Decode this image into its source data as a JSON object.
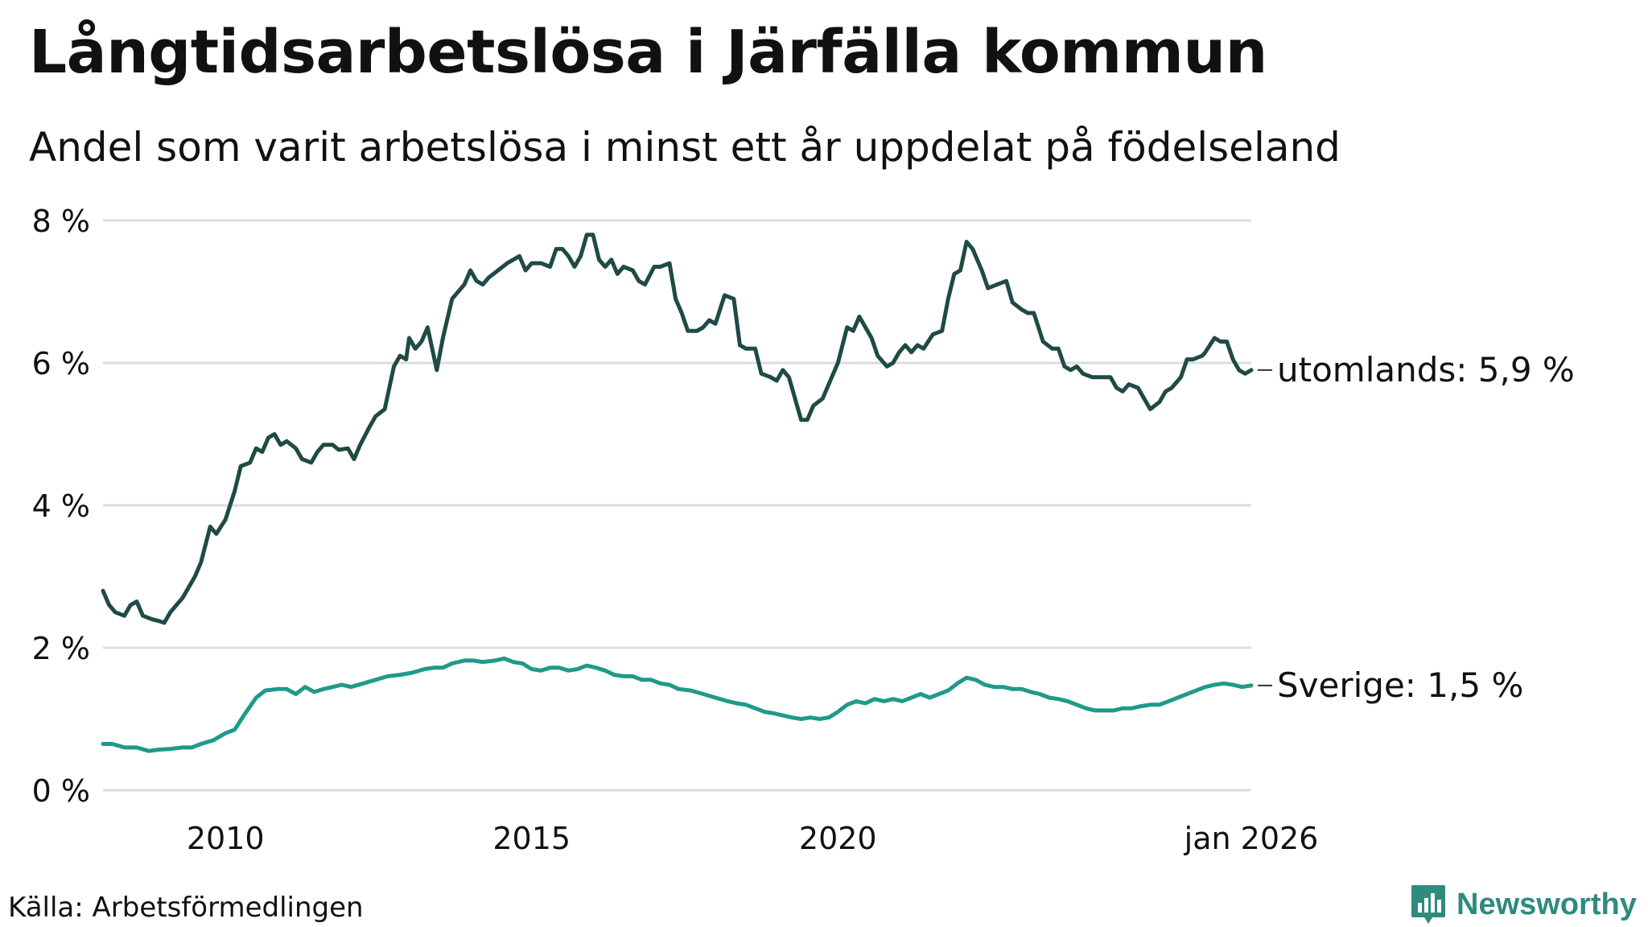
{
  "title": "Långtidsarbetslösa i Järfälla kommun",
  "subtitle": "Andel som varit arbetslösa i minst ett år uppdelat på födelseland",
  "source": "Källa: Arbetsförmedlingen",
  "brand": "Newsworthy",
  "colors": {
    "utomlands": "#1f4a45",
    "sverige": "#1e9a8b",
    "grid": "#dddddd",
    "brand": "#2e8b7e"
  },
  "chart_data": {
    "type": "line",
    "title": "Långtidsarbetslösa i Järfälla kommun",
    "subtitle": "Andel som varit arbetslösa i minst ett år uppdelat på födelseland",
    "xlabel": "",
    "ylabel": "",
    "xlim": [
      2008.0,
      2026.0
    ],
    "ylim": [
      0,
      8
    ],
    "grid": true,
    "y_ticks": [
      {
        "value": 0,
        "label": "0 %"
      },
      {
        "value": 2,
        "label": "2 %"
      },
      {
        "value": 4,
        "label": "4 %"
      },
      {
        "value": 6,
        "label": "6 %"
      },
      {
        "value": 8,
        "label": "8 %"
      }
    ],
    "x_ticks": [
      {
        "value": 2010,
        "label": "2010"
      },
      {
        "value": 2015,
        "label": "2015"
      },
      {
        "value": 2020,
        "label": "2020"
      },
      {
        "value": 2026,
        "label": "jan 2026"
      }
    ],
    "series": [
      {
        "name": "utomlands",
        "end_label": "utomlands: 5,9 %",
        "points": [
          [
            2008.0,
            2.8
          ],
          [
            2008.1,
            2.6
          ],
          [
            2008.2,
            2.5
          ],
          [
            2008.35,
            2.45
          ],
          [
            2008.45,
            2.6
          ],
          [
            2008.55,
            2.65
          ],
          [
            2008.65,
            2.45
          ],
          [
            2008.8,
            2.4
          ],
          [
            2008.9,
            2.38
          ],
          [
            2009.0,
            2.35
          ],
          [
            2009.1,
            2.5
          ],
          [
            2009.3,
            2.7
          ],
          [
            2009.5,
            3.0
          ],
          [
            2009.6,
            3.2
          ],
          [
            2009.75,
            3.7
          ],
          [
            2009.85,
            3.6
          ],
          [
            2010.0,
            3.8
          ],
          [
            2010.15,
            4.2
          ],
          [
            2010.25,
            4.55
          ],
          [
            2010.4,
            4.6
          ],
          [
            2010.5,
            4.8
          ],
          [
            2010.6,
            4.75
          ],
          [
            2010.7,
            4.95
          ],
          [
            2010.8,
            5.0
          ],
          [
            2010.9,
            4.85
          ],
          [
            2011.0,
            4.9
          ],
          [
            2011.15,
            4.8
          ],
          [
            2011.25,
            4.65
          ],
          [
            2011.4,
            4.6
          ],
          [
            2011.5,
            4.75
          ],
          [
            2011.6,
            4.85
          ],
          [
            2011.75,
            4.85
          ],
          [
            2011.85,
            4.78
          ],
          [
            2012.0,
            4.8
          ],
          [
            2012.1,
            4.65
          ],
          [
            2012.2,
            4.85
          ],
          [
            2012.35,
            5.1
          ],
          [
            2012.45,
            5.25
          ],
          [
            2012.6,
            5.35
          ],
          [
            2012.75,
            5.95
          ],
          [
            2012.85,
            6.1
          ],
          [
            2012.95,
            6.05
          ],
          [
            2013.0,
            6.35
          ],
          [
            2013.1,
            6.2
          ],
          [
            2013.2,
            6.3
          ],
          [
            2013.3,
            6.5
          ],
          [
            2013.45,
            5.9
          ],
          [
            2013.55,
            6.35
          ],
          [
            2013.7,
            6.9
          ],
          [
            2013.9,
            7.1
          ],
          [
            2014.0,
            7.3
          ],
          [
            2014.1,
            7.15
          ],
          [
            2014.2,
            7.1
          ],
          [
            2014.3,
            7.2
          ],
          [
            2014.45,
            7.3
          ],
          [
            2014.6,
            7.4
          ],
          [
            2014.8,
            7.5
          ],
          [
            2014.9,
            7.3
          ],
          [
            2015.0,
            7.4
          ],
          [
            2015.15,
            7.4
          ],
          [
            2015.3,
            7.35
          ],
          [
            2015.4,
            7.6
          ],
          [
            2015.5,
            7.6
          ],
          [
            2015.6,
            7.5
          ],
          [
            2015.7,
            7.35
          ],
          [
            2015.8,
            7.5
          ],
          [
            2015.9,
            7.8
          ],
          [
            2016.0,
            7.8
          ],
          [
            2016.1,
            7.45
          ],
          [
            2016.2,
            7.35
          ],
          [
            2016.3,
            7.45
          ],
          [
            2016.4,
            7.25
          ],
          [
            2016.5,
            7.35
          ],
          [
            2016.65,
            7.3
          ],
          [
            2016.75,
            7.15
          ],
          [
            2016.85,
            7.1
          ],
          [
            2017.0,
            7.35
          ],
          [
            2017.1,
            7.35
          ],
          [
            2017.25,
            7.4
          ],
          [
            2017.35,
            6.9
          ],
          [
            2017.45,
            6.7
          ],
          [
            2017.55,
            6.45
          ],
          [
            2017.7,
            6.45
          ],
          [
            2017.8,
            6.5
          ],
          [
            2017.9,
            6.6
          ],
          [
            2018.0,
            6.55
          ],
          [
            2018.15,
            6.95
          ],
          [
            2018.3,
            6.9
          ],
          [
            2018.4,
            6.25
          ],
          [
            2018.5,
            6.2
          ],
          [
            2018.65,
            6.2
          ],
          [
            2018.75,
            5.85
          ],
          [
            2018.9,
            5.8
          ],
          [
            2019.0,
            5.75
          ],
          [
            2019.1,
            5.9
          ],
          [
            2019.2,
            5.8
          ],
          [
            2019.3,
            5.5
          ],
          [
            2019.4,
            5.2
          ],
          [
            2019.5,
            5.2
          ],
          [
            2019.6,
            5.4
          ],
          [
            2019.75,
            5.5
          ],
          [
            2019.9,
            5.8
          ],
          [
            2020.0,
            6.0
          ],
          [
            2020.15,
            6.5
          ],
          [
            2020.25,
            6.45
          ],
          [
            2020.35,
            6.65
          ],
          [
            2020.45,
            6.5
          ],
          [
            2020.55,
            6.35
          ],
          [
            2020.65,
            6.1
          ],
          [
            2020.8,
            5.95
          ],
          [
            2020.9,
            6.0
          ],
          [
            2021.0,
            6.15
          ],
          [
            2021.1,
            6.25
          ],
          [
            2021.2,
            6.15
          ],
          [
            2021.3,
            6.25
          ],
          [
            2021.4,
            6.2
          ],
          [
            2021.55,
            6.4
          ],
          [
            2021.7,
            6.45
          ],
          [
            2021.8,
            6.9
          ],
          [
            2021.9,
            7.25
          ],
          [
            2022.0,
            7.3
          ],
          [
            2022.1,
            7.7
          ],
          [
            2022.2,
            7.6
          ],
          [
            2022.35,
            7.3
          ],
          [
            2022.45,
            7.05
          ],
          [
            2022.6,
            7.1
          ],
          [
            2022.75,
            7.15
          ],
          [
            2022.85,
            6.85
          ],
          [
            2023.0,
            6.75
          ],
          [
            2023.1,
            6.7
          ],
          [
            2023.2,
            6.7
          ],
          [
            2023.35,
            6.3
          ],
          [
            2023.5,
            6.2
          ],
          [
            2023.6,
            6.2
          ],
          [
            2023.7,
            5.95
          ],
          [
            2023.8,
            5.9
          ],
          [
            2023.9,
            5.95
          ],
          [
            2024.0,
            5.85
          ],
          [
            2024.15,
            5.8
          ],
          [
            2024.3,
            5.8
          ],
          [
            2024.45,
            5.8
          ],
          [
            2024.55,
            5.65
          ],
          [
            2024.65,
            5.6
          ],
          [
            2024.75,
            5.7
          ],
          [
            2024.9,
            5.65
          ],
          [
            2025.0,
            5.5
          ],
          [
            2025.1,
            5.35
          ],
          [
            2025.25,
            5.45
          ],
          [
            2025.35,
            5.6
          ],
          [
            2025.45,
            5.65
          ],
          [
            2025.6,
            5.8
          ],
          [
            2025.7,
            6.05
          ],
          [
            2025.8,
            6.05
          ],
          [
            2025.95,
            6.1
          ],
          [
            2026.0,
            6.15
          ],
          [
            2026.15,
            6.35
          ],
          [
            2026.25,
            6.3
          ],
          [
            2026.35,
            6.3
          ],
          [
            2026.45,
            6.05
          ],
          [
            2026.55,
            5.9
          ],
          [
            2026.65,
            5.85
          ],
          [
            2026.75,
            5.9
          ]
        ]
      },
      {
        "name": "Sverige",
        "end_label": "Sverige: 1,5 %",
        "points": [
          [
            2008.0,
            0.65
          ],
          [
            2008.15,
            0.65
          ],
          [
            2008.35,
            0.6
          ],
          [
            2008.55,
            0.6
          ],
          [
            2008.75,
            0.55
          ],
          [
            2008.9,
            0.57
          ],
          [
            2009.1,
            0.58
          ],
          [
            2009.3,
            0.6
          ],
          [
            2009.45,
            0.6
          ],
          [
            2009.6,
            0.65
          ],
          [
            2009.8,
            0.7
          ],
          [
            2010.0,
            0.8
          ],
          [
            2010.15,
            0.85
          ],
          [
            2010.3,
            1.05
          ],
          [
            2010.5,
            1.3
          ],
          [
            2010.65,
            1.4
          ],
          [
            2010.85,
            1.42
          ],
          [
            2011.0,
            1.42
          ],
          [
            2011.15,
            1.35
          ],
          [
            2011.3,
            1.45
          ],
          [
            2011.45,
            1.38
          ],
          [
            2011.6,
            1.42
          ],
          [
            2011.75,
            1.45
          ],
          [
            2011.9,
            1.48
          ],
          [
            2012.05,
            1.45
          ],
          [
            2012.25,
            1.5
          ],
          [
            2012.45,
            1.55
          ],
          [
            2012.65,
            1.6
          ],
          [
            2012.85,
            1.62
          ],
          [
            2013.05,
            1.65
          ],
          [
            2013.25,
            1.7
          ],
          [
            2013.4,
            1.72
          ],
          [
            2013.55,
            1.72
          ],
          [
            2013.7,
            1.78
          ],
          [
            2013.9,
            1.82
          ],
          [
            2014.05,
            1.82
          ],
          [
            2014.2,
            1.8
          ],
          [
            2014.4,
            1.82
          ],
          [
            2014.55,
            1.85
          ],
          [
            2014.7,
            1.8
          ],
          [
            2014.85,
            1.78
          ],
          [
            2015.0,
            1.7
          ],
          [
            2015.15,
            1.68
          ],
          [
            2015.3,
            1.72
          ],
          [
            2015.45,
            1.72
          ],
          [
            2015.6,
            1.68
          ],
          [
            2015.75,
            1.7
          ],
          [
            2015.9,
            1.75
          ],
          [
            2016.05,
            1.72
          ],
          [
            2016.2,
            1.68
          ],
          [
            2016.35,
            1.62
          ],
          [
            2016.5,
            1.6
          ],
          [
            2016.65,
            1.6
          ],
          [
            2016.8,
            1.55
          ],
          [
            2016.95,
            1.55
          ],
          [
            2017.1,
            1.5
          ],
          [
            2017.25,
            1.48
          ],
          [
            2017.4,
            1.42
          ],
          [
            2017.6,
            1.4
          ],
          [
            2017.8,
            1.35
          ],
          [
            2018.0,
            1.3
          ],
          [
            2018.2,
            1.25
          ],
          [
            2018.35,
            1.22
          ],
          [
            2018.5,
            1.2
          ],
          [
            2018.65,
            1.15
          ],
          [
            2018.8,
            1.1
          ],
          [
            2018.95,
            1.08
          ],
          [
            2019.1,
            1.05
          ],
          [
            2019.25,
            1.02
          ],
          [
            2019.4,
            1.0
          ],
          [
            2019.55,
            1.02
          ],
          [
            2019.7,
            1.0
          ],
          [
            2019.85,
            1.02
          ],
          [
            2020.0,
            1.1
          ],
          [
            2020.15,
            1.2
          ],
          [
            2020.3,
            1.25
          ],
          [
            2020.45,
            1.22
          ],
          [
            2020.6,
            1.28
          ],
          [
            2020.75,
            1.25
          ],
          [
            2020.9,
            1.28
          ],
          [
            2021.05,
            1.25
          ],
          [
            2021.2,
            1.3
          ],
          [
            2021.35,
            1.35
          ],
          [
            2021.5,
            1.3
          ],
          [
            2021.65,
            1.35
          ],
          [
            2021.8,
            1.4
          ],
          [
            2021.95,
            1.5
          ],
          [
            2022.1,
            1.58
          ],
          [
            2022.25,
            1.55
          ],
          [
            2022.4,
            1.48
          ],
          [
            2022.55,
            1.45
          ],
          [
            2022.7,
            1.45
          ],
          [
            2022.85,
            1.42
          ],
          [
            2023.0,
            1.42
          ],
          [
            2023.15,
            1.38
          ],
          [
            2023.3,
            1.35
          ],
          [
            2023.45,
            1.3
          ],
          [
            2023.6,
            1.28
          ],
          [
            2023.75,
            1.25
          ],
          [
            2023.9,
            1.2
          ],
          [
            2024.05,
            1.15
          ],
          [
            2024.2,
            1.12
          ],
          [
            2024.35,
            1.12
          ],
          [
            2024.5,
            1.12
          ],
          [
            2024.65,
            1.15
          ],
          [
            2024.8,
            1.15
          ],
          [
            2024.95,
            1.18
          ],
          [
            2025.1,
            1.2
          ],
          [
            2025.25,
            1.2
          ],
          [
            2025.4,
            1.25
          ],
          [
            2025.55,
            1.3
          ],
          [
            2025.7,
            1.35
          ],
          [
            2025.85,
            1.4
          ],
          [
            2026.0,
            1.45
          ],
          [
            2026.15,
            1.48
          ],
          [
            2026.3,
            1.5
          ],
          [
            2026.45,
            1.48
          ],
          [
            2026.6,
            1.45
          ],
          [
            2026.75,
            1.47
          ]
        ]
      }
    ]
  }
}
